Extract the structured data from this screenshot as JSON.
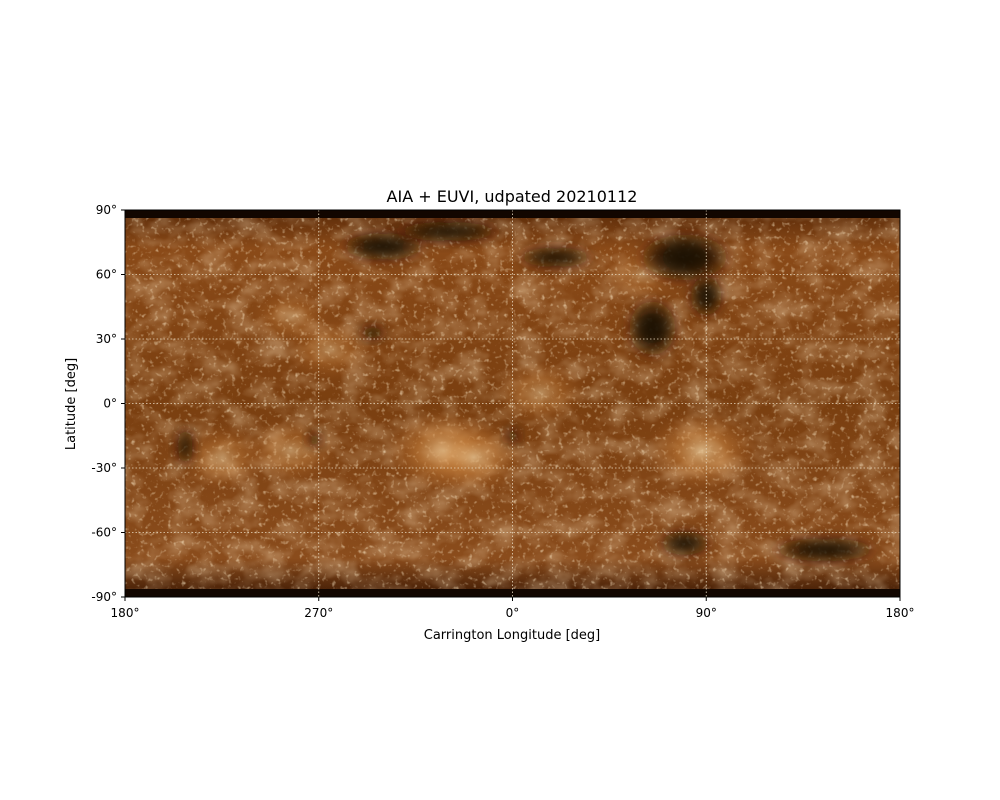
{
  "chart_data": {
    "type": "heatmap",
    "title": "AIA + EUVI, udpated 20210112",
    "xlabel": "Carrington Longitude [deg]",
    "ylabel": "Latitude [deg]",
    "xlim": [
      180,
      540
    ],
    "ylim": [
      -90,
      90
    ],
    "grid": true,
    "colormap": "sdoaia193",
    "x_ticks": [
      {
        "value": 180,
        "label": "180°"
      },
      {
        "value": 270,
        "label": "270°"
      },
      {
        "value": 360,
        "label": "0°"
      },
      {
        "value": 450,
        "label": "90°"
      },
      {
        "value": 540,
        "label": "180°"
      }
    ],
    "y_ticks": [
      {
        "value": 90,
        "label": "90°"
      },
      {
        "value": 60,
        "label": "60°"
      },
      {
        "value": 30,
        "label": "30°"
      },
      {
        "value": 0,
        "label": "0°"
      },
      {
        "value": -30,
        "label": "-30°"
      },
      {
        "value": -60,
        "label": "-60°"
      },
      {
        "value": -90,
        "label": "-90°"
      }
    ],
    "bright_regions": [
      {
        "lon": 225,
        "lat": -25,
        "intensity": 0.55
      },
      {
        "lon": 257,
        "lat": -22,
        "intensity": 0.55
      },
      {
        "lon": 275,
        "lat": 25,
        "intensity": 0.5
      },
      {
        "lon": 328,
        "lat": -22,
        "intensity": 0.85
      },
      {
        "lon": 342,
        "lat": -25,
        "intensity": 0.7
      },
      {
        "lon": 373,
        "lat": 5,
        "intensity": 0.55
      },
      {
        "lon": 448,
        "lat": -22,
        "intensity": 0.8
      },
      {
        "lon": 257,
        "lat": 40,
        "intensity": 0.4
      },
      {
        "lon": 420,
        "lat": 60,
        "intensity": 0.4
      }
    ],
    "dark_regions": [
      {
        "lon": 440,
        "lat": 68,
        "rx": 22,
        "ry": 12
      },
      {
        "lon": 425,
        "lat": 35,
        "rx": 12,
        "ry": 14
      },
      {
        "lon": 450,
        "lat": 50,
        "rx": 8,
        "ry": 10
      },
      {
        "lon": 380,
        "lat": 68,
        "rx": 18,
        "ry": 5
      },
      {
        "lon": 300,
        "lat": 73,
        "rx": 20,
        "ry": 7
      },
      {
        "lon": 295,
        "lat": 33,
        "rx": 6,
        "ry": 3
      },
      {
        "lon": 208,
        "lat": -20,
        "rx": 4,
        "ry": 9
      },
      {
        "lon": 268,
        "lat": -17,
        "rx": 3,
        "ry": 4
      },
      {
        "lon": 360,
        "lat": -15,
        "rx": 3,
        "ry": 4
      },
      {
        "lon": 505,
        "lat": -68,
        "rx": 25,
        "ry": 6
      },
      {
        "lon": 440,
        "lat": -65,
        "rx": 12,
        "ry": 6
      },
      {
        "lon": 330,
        "lat": 80,
        "rx": 25,
        "ry": 5
      }
    ]
  },
  "colors": {
    "base": "#7a3f10",
    "dark": "#1e0c02",
    "bright": "#f3d6a6",
    "grid": "#e8d9c0",
    "axis": "#000000"
  }
}
